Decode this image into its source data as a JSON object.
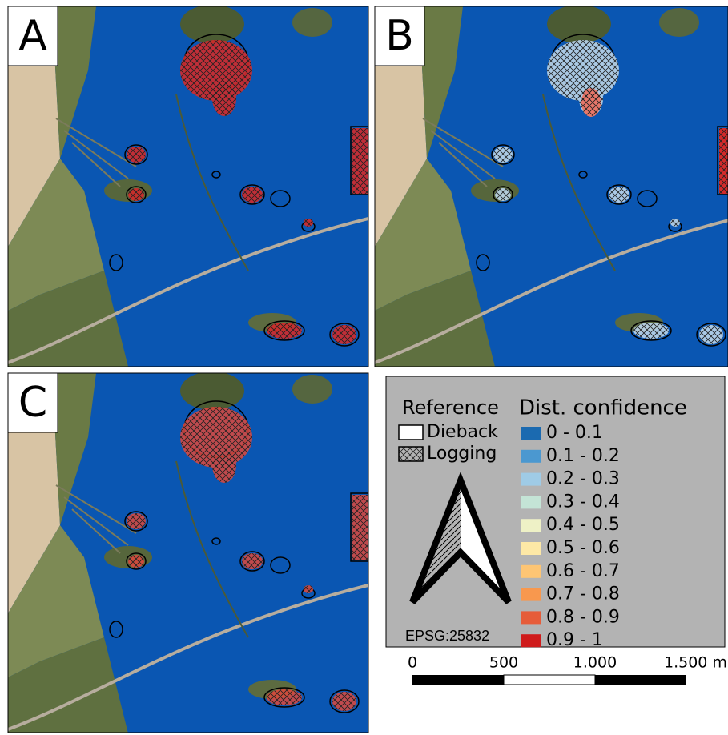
{
  "panels": [
    "A",
    "B",
    "C"
  ],
  "legend": {
    "reference_title": "Reference",
    "reference_items": [
      "Dieback",
      "Logging"
    ],
    "confidence_title": "Dist. confidence",
    "classes": [
      {
        "label": "0 - 0.1",
        "color": "#1b6ab0"
      },
      {
        "label": "0.1 - 0.2",
        "color": "#4b98d0"
      },
      {
        "label": "0.2 - 0.3",
        "color": "#9fcbe6"
      },
      {
        "label": "0.3 - 0.4",
        "color": "#c4e4d6"
      },
      {
        "label": "0.4 - 0.5",
        "color": "#eef1c6"
      },
      {
        "label": "0.5 - 0.6",
        "color": "#fde8a6"
      },
      {
        "label": "0.6 - 0.7",
        "color": "#fdc574"
      },
      {
        "label": "0.7 - 0.8",
        "color": "#f8984e"
      },
      {
        "label": "0.8 - 0.9",
        "color": "#e65c39"
      },
      {
        "label": "0.9 - 1",
        "color": "#cf1b1b"
      }
    ],
    "crs": "EPSG:25832"
  },
  "scale_bar": {
    "labels": [
      "0",
      "500",
      "1.000",
      "1.500 m"
    ]
  }
}
